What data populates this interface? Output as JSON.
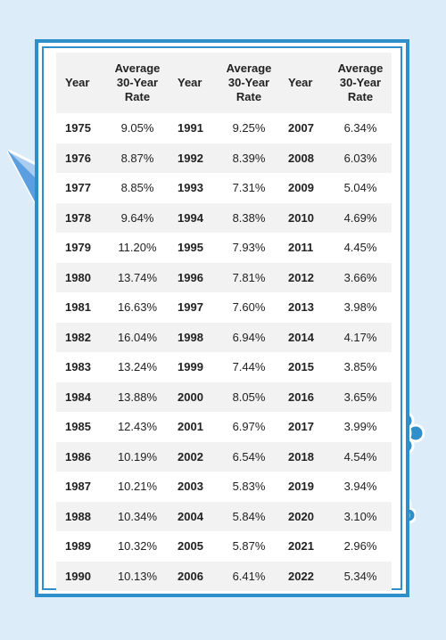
{
  "colors": {
    "background": "#dcecf9",
    "frame": "#2f8fcb",
    "stripe": "#f2f2f2"
  },
  "decorations": {
    "left": "paper-plane-icon",
    "right_top": "cloud-icon",
    "right_bottom": "cloud-icon"
  },
  "table": {
    "headers": [
      "Year",
      "Average 30-Year Rate",
      "Year",
      "Average 30-Year Rate",
      "Year",
      "Average 30-Year Rate"
    ],
    "rows": [
      [
        "1975",
        "9.05%",
        "1991",
        "9.25%",
        "2007",
        "6.34%"
      ],
      [
        "1976",
        "8.87%",
        "1992",
        "8.39%",
        "2008",
        "6.03%"
      ],
      [
        "1977",
        "8.85%",
        "1993",
        "7.31%",
        "2009",
        "5.04%"
      ],
      [
        "1978",
        "9.64%",
        "1994",
        "8.38%",
        "2010",
        "4.69%"
      ],
      [
        "1979",
        "11.20%",
        "1995",
        "7.93%",
        "2011",
        "4.45%"
      ],
      [
        "1980",
        "13.74%",
        "1996",
        "7.81%",
        "2012",
        "3.66%"
      ],
      [
        "1981",
        "16.63%",
        "1997",
        "7.60%",
        "2013",
        "3.98%"
      ],
      [
        "1982",
        "16.04%",
        "1998",
        "6.94%",
        "2014",
        "4.17%"
      ],
      [
        "1983",
        "13.24%",
        "1999",
        "7.44%",
        "2015",
        "3.85%"
      ],
      [
        "1984",
        "13.88%",
        "2000",
        "8.05%",
        "2016",
        "3.65%"
      ],
      [
        "1985",
        "12.43%",
        "2001",
        "6.97%",
        "2017",
        "3.99%"
      ],
      [
        "1986",
        "10.19%",
        "2002",
        "6.54%",
        "2018",
        "4.54%"
      ],
      [
        "1987",
        "10.21%",
        "2003",
        "5.83%",
        "2019",
        "3.94%"
      ],
      [
        "1988",
        "10.34%",
        "2004",
        "5.84%",
        "2020",
        "3.10%"
      ],
      [
        "1989",
        "10.32%",
        "2005",
        "5.87%",
        "2021",
        "2.96%"
      ],
      [
        "1990",
        "10.13%",
        "2006",
        "6.41%",
        "2022",
        "5.34%"
      ]
    ]
  }
}
